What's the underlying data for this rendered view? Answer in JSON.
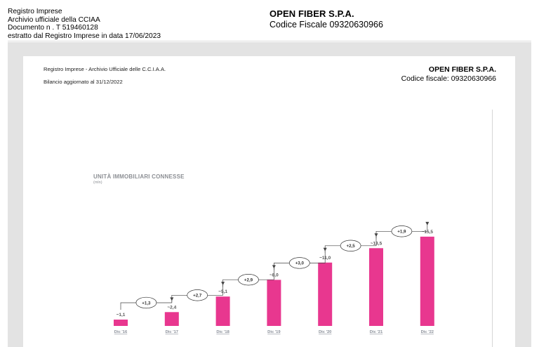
{
  "document_header": {
    "left_lines": [
      "Registro Imprese",
      "Archivio ufficiale della CCIAA",
      "Documento n . T 519460128",
      "estratto dal Registro Imprese in data 17/06/2023"
    ],
    "company": "OPEN FIBER S.P.A.",
    "fiscal_code": "Codice Fiscale 09320630966"
  },
  "page_header": {
    "registry": "Registro Imprese - Archivio Ufficiale delle C.C.I.A.A.",
    "balance": "Bilancio aggiornato al 31/12/2022",
    "company": "OPEN FIBER S.P.A.",
    "fiscal_code": "Codice fiscale: 09320630966"
  },
  "chart_data": {
    "type": "bar",
    "title": "UNITÀ IMMOBILIARI CONNESSE",
    "unit": "(mln)",
    "categories": [
      "Dic '16",
      "Dic '17",
      "Dic '18",
      "Dic '19",
      "Dic '20",
      "Dic '21",
      "Dic '22"
    ],
    "values": [
      1.1,
      2.4,
      5.1,
      8.0,
      11.0,
      13.5,
      15.5
    ],
    "value_labels": [
      "~1,1",
      "~2,4",
      "~5,1",
      "~8,0",
      "~11,0",
      "~13,5",
      "~15,5"
    ],
    "increments": [
      1.3,
      2.7,
      2.9,
      3.0,
      2.5,
      1.9
    ],
    "increment_labels": [
      "+1,3",
      "+2,7",
      "+2,9",
      "+3,0",
      "+2,5",
      "+1,9"
    ],
    "ylim": [
      0,
      15.5
    ],
    "bar_color": "#e8378f"
  }
}
